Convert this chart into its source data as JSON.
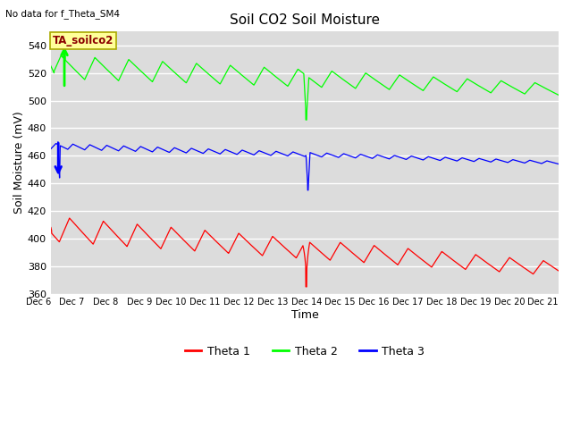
{
  "title": "Soil CO2 Soil Moisture",
  "subtitle": "No data for f_Theta_SM4",
  "xlabel": "Time",
  "ylabel": "Soil Moisture (mV)",
  "annotation": "TA_soilco2",
  "ylim": [
    360,
    550
  ],
  "xlim": [
    6,
    21
  ],
  "xtick_positions": [
    6,
    7,
    8,
    9,
    10,
    11,
    12,
    13,
    14,
    15,
    16,
    17,
    18,
    19,
    20,
    21
  ],
  "xtick_labels": [
    "Dec 6",
    "Dec 7",
    "Dec 8",
    "Dec 9",
    "Dec 10",
    "Dec 11",
    "Dec 12",
    "Dec 13",
    "Dec 14",
    "Dec 15",
    "Dec 16",
    "Dec 17",
    "Dec 18",
    "Dec 19",
    "Dec 20",
    "Dec 21"
  ],
  "ytick_values": [
    360,
    380,
    400,
    420,
    440,
    460,
    480,
    500,
    520,
    540
  ],
  "colors": {
    "theta1": "#FF0000",
    "theta2": "#00FF00",
    "theta3": "#0000FF",
    "background": "#DCDCDC",
    "annotation_bg": "#FFFF99",
    "annotation_border": "#AAAA00"
  },
  "legend_labels": [
    "Theta 1",
    "Theta 2",
    "Theta 3"
  ],
  "fig_width": 6.4,
  "fig_height": 4.8,
  "dpi": 100
}
